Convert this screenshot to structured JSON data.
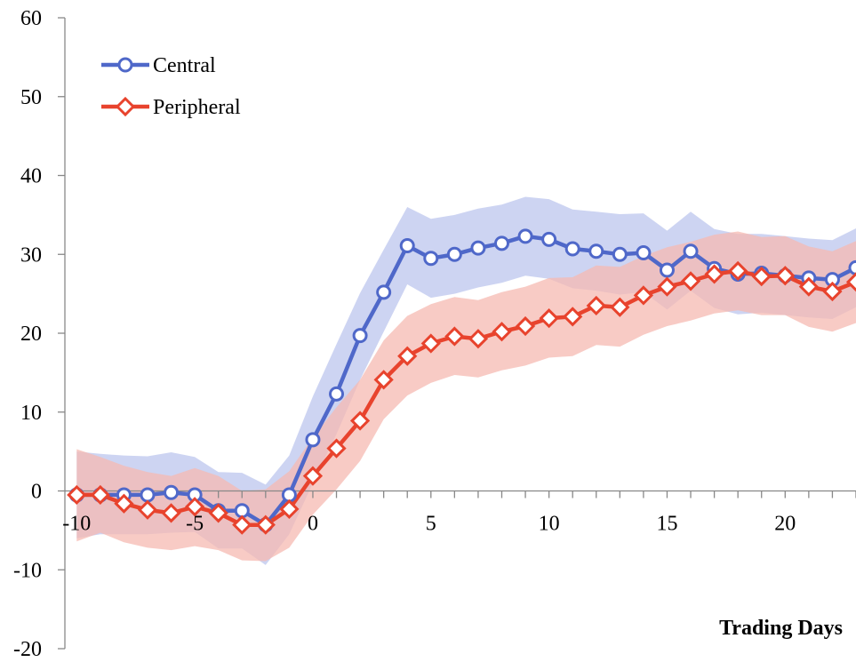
{
  "chart_data": {
    "type": "line",
    "title": "",
    "xlabel": "Trading Days",
    "ylabel": "",
    "xlim": [
      -10.5,
      23
    ],
    "ylim": [
      -20,
      60
    ],
    "x_ticks": [
      -10,
      -5,
      0,
      5,
      10,
      15,
      20
    ],
    "y_ticks": [
      -20,
      -10,
      0,
      10,
      20,
      30,
      40,
      50,
      60
    ],
    "grid": false,
    "legend_position": "top-left",
    "x": [
      -10,
      -9,
      -8,
      -7,
      -6,
      -5,
      -4,
      -3,
      -2,
      -1,
      0,
      1,
      2,
      3,
      4,
      5,
      6,
      7,
      8,
      9,
      10,
      11,
      12,
      13,
      14,
      15,
      16,
      17,
      18,
      19,
      20,
      21,
      22,
      23
    ],
    "series": [
      {
        "name": "Central",
        "color": "#4f68c9",
        "band_color": "#bcc6ee",
        "marker": "circle",
        "values": [
          -0.5,
          -0.5,
          -0.5,
          -0.5,
          -0.2,
          -0.5,
          -2.5,
          -2.5,
          -4.3,
          -0.5,
          6.5,
          12.3,
          19.7,
          25.2,
          31.1,
          29.5,
          30.0,
          30.8,
          31.4,
          32.3,
          31.9,
          30.7,
          30.4,
          30.0,
          30.2,
          28.0,
          30.4,
          28.2,
          27.5,
          27.6,
          27.3,
          27.0,
          26.8,
          28.3
        ],
        "upper": [
          5.0,
          4.7,
          4.5,
          4.4,
          4.9,
          4.3,
          2.4,
          2.3,
          0.8,
          4.5,
          12.0,
          18.6,
          25.1,
          30.6,
          36.0,
          34.5,
          35.0,
          35.8,
          36.3,
          37.3,
          37.0,
          35.7,
          35.4,
          35.1,
          35.2,
          33.0,
          35.4,
          33.2,
          32.6,
          32.6,
          32.3,
          32.0,
          31.8,
          33.3
        ],
        "lower": [
          -6.0,
          -5.5,
          -5.5,
          -5.5,
          -5.3,
          -5.2,
          -7.3,
          -7.3,
          -9.4,
          -5.5,
          1.0,
          7.2,
          14.1,
          20.2,
          26.2,
          24.5,
          25.0,
          25.8,
          26.4,
          27.3,
          26.9,
          25.7,
          25.4,
          24.9,
          25.2,
          23.0,
          25.4,
          23.2,
          22.4,
          22.6,
          22.3,
          22.0,
          21.8,
          23.3
        ]
      },
      {
        "name": "Peripheral",
        "color": "#e8432d",
        "band_color": "#f6b9b1",
        "marker": "diamond",
        "values": [
          -0.5,
          -0.5,
          -1.6,
          -2.4,
          -2.8,
          -2.0,
          -2.8,
          -4.3,
          -4.3,
          -2.3,
          1.9,
          5.4,
          8.9,
          14.1,
          17.1,
          18.7,
          19.6,
          19.3,
          20.2,
          20.9,
          21.9,
          22.1,
          23.5,
          23.3,
          24.8,
          25.9,
          26.6,
          27.5,
          27.9,
          27.2,
          27.3,
          25.9,
          25.3,
          26.5
        ],
        "upper": [
          5.3,
          4.3,
          3.2,
          2.4,
          1.9,
          2.9,
          1.9,
          0.0,
          0.2,
          2.5,
          6.8,
          10.6,
          14.1,
          19.1,
          22.2,
          23.7,
          24.6,
          24.2,
          25.2,
          25.9,
          27.0,
          27.1,
          28.6,
          28.4,
          29.8,
          30.9,
          31.6,
          32.5,
          32.9,
          32.2,
          32.3,
          31.0,
          30.4,
          31.7
        ],
        "lower": [
          -6.4,
          -5.3,
          -6.5,
          -7.2,
          -7.5,
          -7.0,
          -7.5,
          -8.8,
          -8.9,
          -7.2,
          -3.0,
          0.2,
          3.8,
          9.1,
          12.1,
          13.7,
          14.7,
          14.4,
          15.3,
          15.9,
          16.9,
          17.1,
          18.5,
          18.3,
          19.8,
          20.9,
          21.6,
          22.5,
          22.9,
          22.3,
          22.3,
          20.8,
          20.2,
          21.3
        ]
      }
    ]
  }
}
